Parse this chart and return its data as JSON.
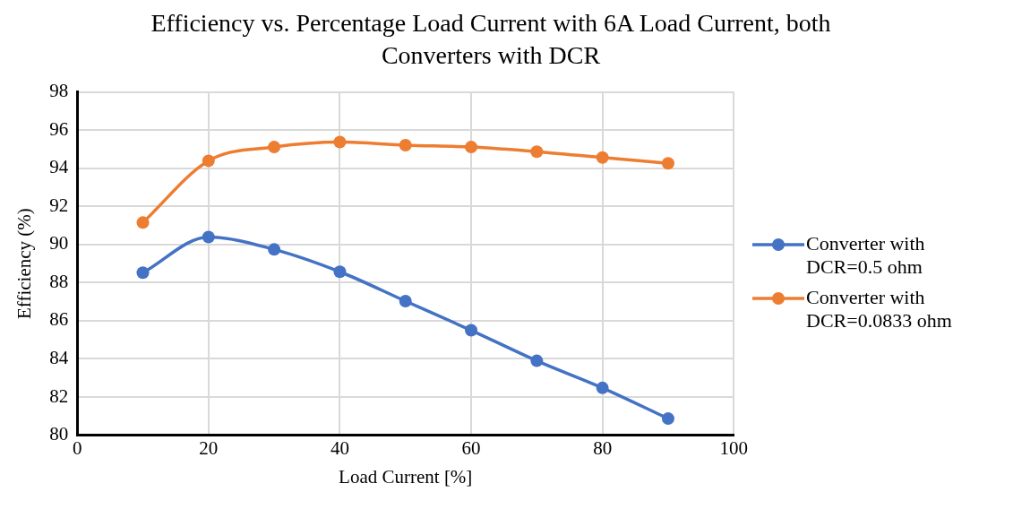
{
  "chart_data": {
    "type": "line",
    "title": "Efficiency vs. Percentage Load Current with 6A Load Current, both Converters with DCR",
    "xlabel": "Load Current [%]",
    "ylabel": "Efficiency (%)",
    "x": [
      10,
      20,
      30,
      40,
      50,
      60,
      70,
      80,
      90
    ],
    "series": [
      {
        "name": "Converter with DCR=0.5 ohm",
        "color": "#4472c4",
        "values": [
          88.52,
          90.39,
          89.74,
          88.57,
          87.03,
          85.5,
          83.9,
          82.48,
          80.87
        ]
      },
      {
        "name": "Converter with DCR=0.0833 ohm",
        "color": "#ed7d31",
        "values": [
          91.15,
          94.39,
          95.11,
          95.37,
          95.21,
          95.11,
          94.87,
          94.56,
          94.26
        ]
      }
    ],
    "xlim": [
      0,
      100
    ],
    "xticks": [
      0,
      20,
      40,
      60,
      80,
      100
    ],
    "ylim": [
      80,
      98
    ],
    "yticks": [
      80,
      82,
      84,
      86,
      88,
      90,
      92,
      94,
      96,
      98
    ],
    "grid": true,
    "legend": "right",
    "marker": "circle",
    "line_style": "solid"
  }
}
